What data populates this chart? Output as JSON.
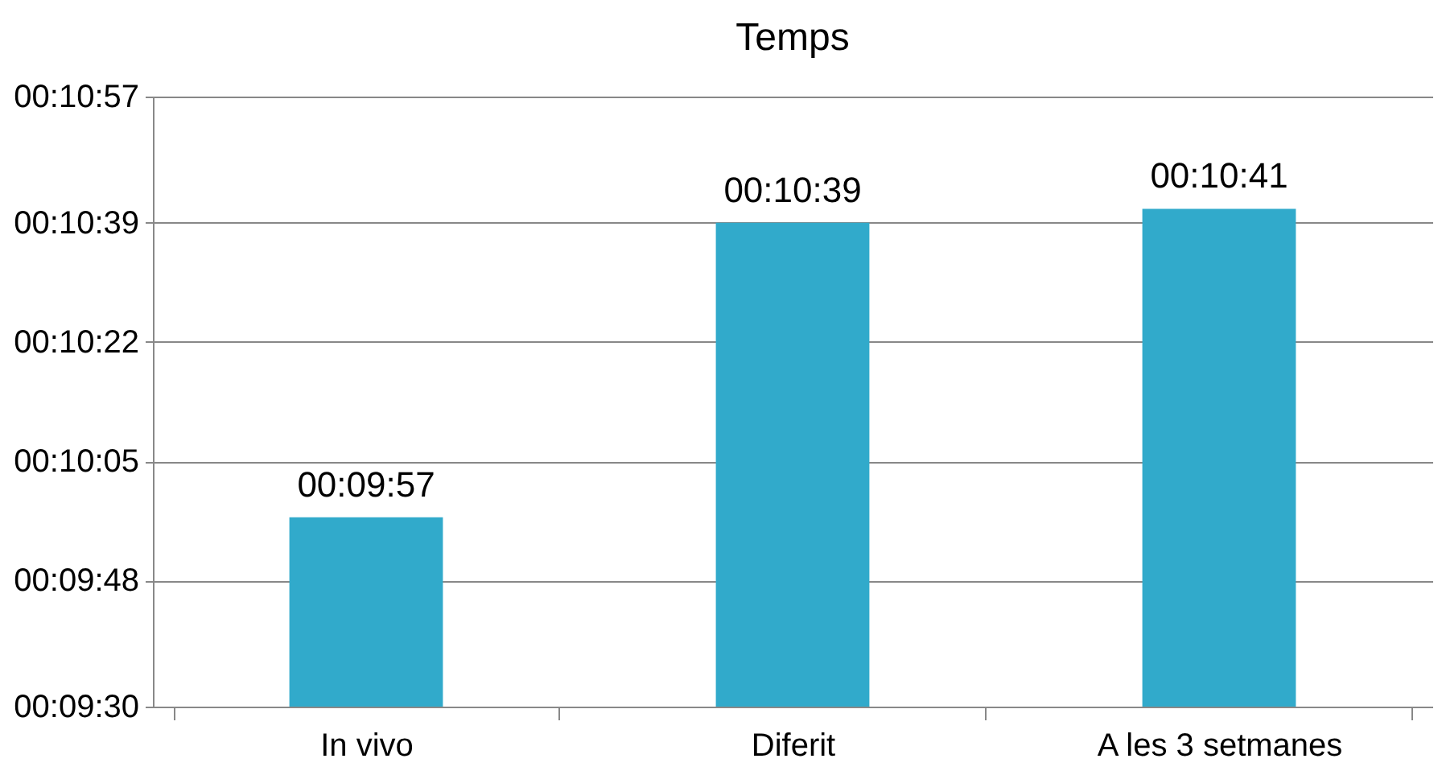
{
  "chart_data": {
    "type": "bar",
    "title": "Temps",
    "categories": [
      "In vivo",
      "Diferit",
      "A les 3 setmanes"
    ],
    "values": [
      597,
      639,
      641
    ],
    "value_labels": [
      "00:09:57",
      "00:10:39",
      "00:10:41"
    ],
    "color": "#31aacb",
    "ylim": [
      570,
      657
    ],
    "yticks": [
      {
        "value": 570,
        "label": "00:09:30"
      },
      {
        "value": 588,
        "label": "00:09:48"
      },
      {
        "value": 605,
        "label": "00:10:05"
      },
      {
        "value": 622,
        "label": "00:10:22"
      },
      {
        "value": 639,
        "label": "00:10:39"
      },
      {
        "value": 657,
        "label": "00:10:57"
      }
    ],
    "grid": "y"
  }
}
